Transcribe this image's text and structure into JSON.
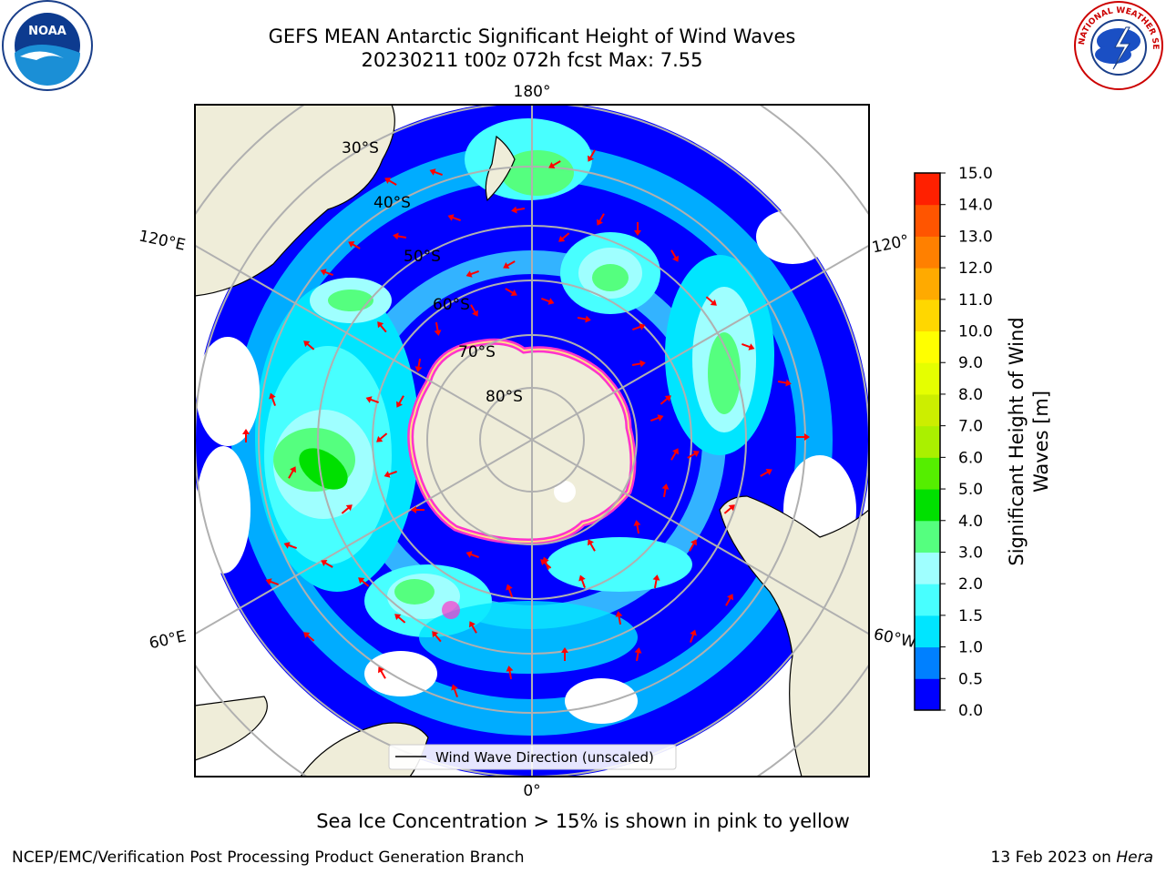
{
  "header": {
    "title_line1": "GEFS MEAN Antarctic Significant Height of Wind Waves",
    "title_line2": "20230211 t00z 072h fcst   Max: 7.55"
  },
  "logos": {
    "left": {
      "icon": "noaa-logo",
      "text": "NOAA"
    },
    "right": {
      "icon": "national-weather-service-logo",
      "text": "NATIONAL WEATHER SERVICE"
    }
  },
  "map": {
    "projection": "south-polar-stereographic",
    "lon_labels": {
      "top": "180°",
      "bottom": "0°",
      "left_upper": "120°E",
      "left_lower": "60°E",
      "right_upper": "120°",
      "right_lower": "60°W"
    },
    "lat_labels": [
      "30°S",
      "40°S",
      "50°S",
      "60°S",
      "70°S",
      "80°S"
    ],
    "land_color": "#efedd9",
    "ice_color": "#ff33cc",
    "arrow_color": "#ff0000",
    "legend": {
      "label": "Wind Wave Direction (unscaled)"
    }
  },
  "colorbar": {
    "label_line1": "Significant Height of Wind",
    "label_line2": "Waves [m]",
    "ticks": [
      "0.0",
      "0.5",
      "1.0",
      "1.5",
      "2.0",
      "3.0",
      "4.0",
      "5.0",
      "6.0",
      "7.0",
      "8.0",
      "9.0",
      "10.0",
      "11.0",
      "12.0",
      "13.0",
      "14.0",
      "15.0"
    ],
    "colors": [
      "#0000ff",
      "#0080ff",
      "#00e5ff",
      "#48ffff",
      "#9fffff",
      "#55ff7f",
      "#00e000",
      "#55ee00",
      "#aaf000",
      "#ccee00",
      "#e5ff00",
      "#ffff00",
      "#ffd700",
      "#ffaa00",
      "#ff8000",
      "#ff5500",
      "#ff2000"
    ]
  },
  "footer": {
    "caption": "Sea Ice Concentration > 15% is shown in pink to yellow",
    "left": "NCEP/EMC/Verification Post Processing Product Generation Branch",
    "right_date": "13 Feb 2023 on ",
    "right_host": "Hera"
  }
}
